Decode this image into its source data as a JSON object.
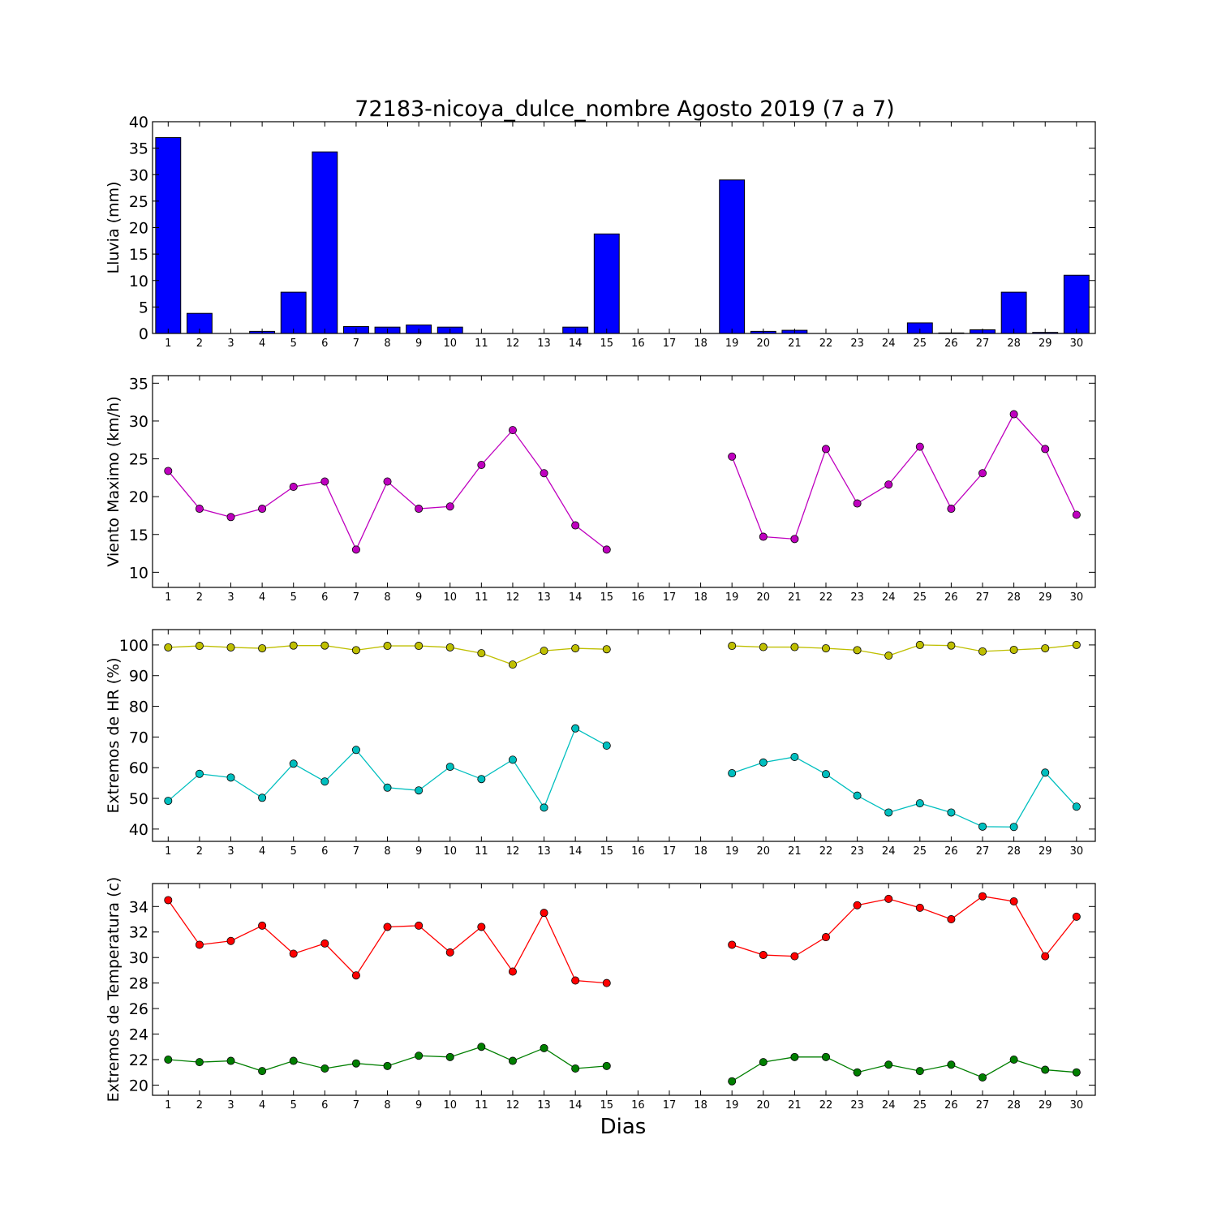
{
  "chart_data": {
    "title": "72183-nicoya_dulce_nombre Agosto 2019  (7 a 7)",
    "xlabel": "Dias",
    "days": [
      1,
      2,
      3,
      4,
      5,
      6,
      7,
      8,
      9,
      10,
      11,
      12,
      13,
      14,
      15,
      16,
      17,
      18,
      19,
      20,
      21,
      22,
      23,
      24,
      25,
      26,
      27,
      28,
      29,
      30
    ],
    "panels": [
      {
        "type": "bar",
        "ylabel": "Lluvia (mm)",
        "ylim": [
          0,
          40
        ],
        "yticks": [
          0,
          5,
          10,
          15,
          20,
          25,
          30,
          35,
          40
        ],
        "series": [
          {
            "color": "#0000ff",
            "values": [
              37.0,
              3.8,
              0.0,
              0.4,
              7.8,
              34.3,
              1.3,
              1.2,
              1.6,
              1.2,
              0.0,
              0.0,
              0.0,
              1.2,
              18.8,
              0.0,
              0.0,
              0.0,
              29.0,
              0.4,
              0.6,
              0.0,
              0.0,
              0.0,
              2.0,
              0.1,
              0.7,
              7.8,
              0.2,
              11.0
            ]
          }
        ]
      },
      {
        "type": "line",
        "ylabel": "Viento Maximo (km/h)",
        "ylim": [
          8,
          36
        ],
        "yticks": [
          10,
          15,
          20,
          25,
          30,
          35
        ],
        "series": [
          {
            "color": "#bf00bf",
            "values": [
              23.4,
              18.4,
              17.3,
              18.4,
              21.3,
              22.0,
              13.0,
              22.0,
              18.4,
              18.7,
              24.2,
              28.8,
              23.1,
              16.2,
              13.0,
              null,
              null,
              null,
              25.3,
              14.7,
              14.4,
              26.3,
              19.1,
              21.6,
              26.6,
              18.4,
              23.1,
              30.9,
              26.3,
              17.6
            ]
          }
        ]
      },
      {
        "type": "line",
        "ylabel": "Extremos de HR (%)",
        "ylim": [
          36,
          105
        ],
        "yticks": [
          40,
          50,
          60,
          70,
          80,
          90,
          100
        ],
        "series": [
          {
            "color": "#bfbf00",
            "values": [
              99.2,
              99.7,
              99.2,
              98.9,
              99.8,
              99.8,
              98.3,
              99.7,
              99.7,
              99.2,
              97.3,
              93.6,
              98.1,
              98.9,
              98.6,
              null,
              null,
              null,
              99.7,
              99.3,
              99.3,
              98.9,
              98.3,
              96.5,
              100.0,
              99.8,
              97.9,
              98.4,
              98.9,
              100.0
            ]
          },
          {
            "color": "#00bfbf",
            "values": [
              49.2,
              58.0,
              56.8,
              50.2,
              61.3,
              55.5,
              65.8,
              53.5,
              52.6,
              60.3,
              56.3,
              62.6,
              47.0,
              72.8,
              67.2,
              null,
              null,
              null,
              58.2,
              61.7,
              63.5,
              57.9,
              50.9,
              45.4,
              48.4,
              45.4,
              40.8,
              40.7,
              58.4,
              47.3
            ]
          }
        ]
      },
      {
        "type": "line",
        "ylabel": "Extremos de Temperatura (c)",
        "ylim": [
          19.2,
          35.8
        ],
        "yticks": [
          20,
          22,
          24,
          26,
          28,
          30,
          32,
          34
        ],
        "series": [
          {
            "color": "#ff0000",
            "values": [
              34.5,
              31.0,
              31.3,
              32.5,
              30.3,
              31.1,
              28.6,
              32.4,
              32.5,
              30.4,
              32.4,
              28.9,
              33.5,
              28.2,
              28.0,
              null,
              null,
              null,
              31.0,
              30.2,
              30.1,
              31.6,
              34.1,
              34.6,
              33.9,
              33.0,
              34.8,
              34.4,
              30.1,
              33.2
            ]
          },
          {
            "color": "#007f00",
            "values": [
              22.0,
              21.8,
              21.9,
              21.1,
              21.9,
              21.3,
              21.7,
              21.5,
              22.3,
              22.2,
              23.0,
              21.9,
              22.9,
              21.3,
              21.5,
              null,
              null,
              null,
              20.3,
              21.8,
              22.2,
              22.2,
              21.0,
              21.6,
              21.1,
              21.6,
              20.6,
              22.0,
              21.2,
              21.0
            ]
          }
        ]
      }
    ]
  }
}
